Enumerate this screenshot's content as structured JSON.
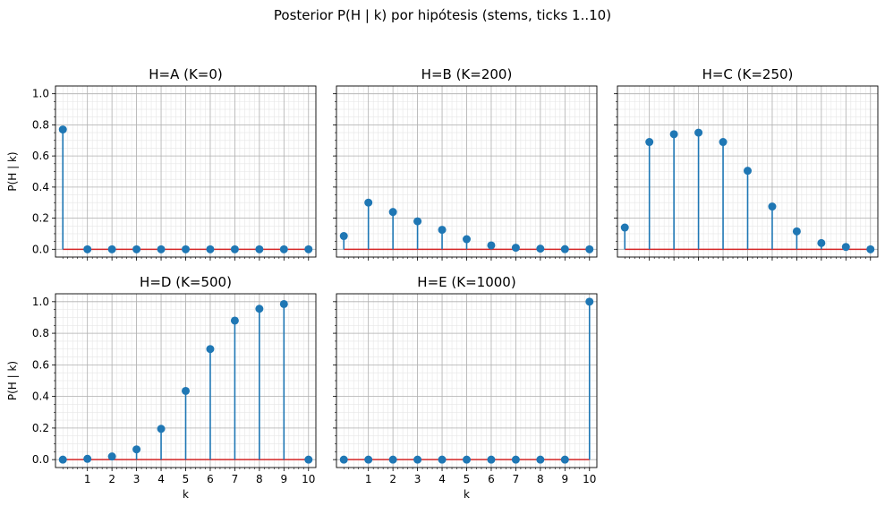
{
  "figure": {
    "suptitle": "Posterior P(H | k) por hipótesis (stems, ticks 1..10)"
  },
  "chart_data": [
    {
      "type": "stem",
      "title": "H=A (K=0)",
      "xlabel": "",
      "ylabel": "P(H | k)",
      "x": [
        0,
        1,
        2,
        3,
        4,
        5,
        6,
        7,
        8,
        9,
        10
      ],
      "values": [
        0.77,
        0,
        0,
        0,
        0,
        0,
        0,
        0,
        0,
        0,
        0
      ],
      "xlim": [
        -0.3,
        10.3
      ],
      "ylim": [
        -0.05,
        1.05
      ],
      "xticks": [
        1,
        2,
        3,
        4,
        5,
        6,
        7,
        8,
        9,
        10
      ],
      "yticks": [
        0.0,
        0.2,
        0.4,
        0.6,
        0.8,
        1.0
      ],
      "show_xtick_labels": false,
      "show_ytick_labels": true,
      "grid": true
    },
    {
      "type": "stem",
      "title": "H=B (K=200)",
      "xlabel": "",
      "ylabel": "",
      "x": [
        0,
        1,
        2,
        3,
        4,
        5,
        6,
        7,
        8,
        9,
        10
      ],
      "values": [
        0.085,
        0.3,
        0.24,
        0.18,
        0.125,
        0.065,
        0.025,
        0.01,
        0.004,
        0.001,
        0.0
      ],
      "xlim": [
        -0.3,
        10.3
      ],
      "ylim": [
        -0.05,
        1.05
      ],
      "xticks": [
        1,
        2,
        3,
        4,
        5,
        6,
        7,
        8,
        9,
        10
      ],
      "yticks": [
        0.0,
        0.2,
        0.4,
        0.6,
        0.8,
        1.0
      ],
      "show_xtick_labels": false,
      "show_ytick_labels": false,
      "grid": true
    },
    {
      "type": "stem",
      "title": "H=C (K=250)",
      "xlabel": "",
      "ylabel": "",
      "x": [
        0,
        1,
        2,
        3,
        4,
        5,
        6,
        7,
        8,
        9,
        10
      ],
      "values": [
        0.14,
        0.69,
        0.74,
        0.75,
        0.69,
        0.505,
        0.275,
        0.115,
        0.04,
        0.015,
        0.0
      ],
      "xlim": [
        -0.3,
        10.3
      ],
      "ylim": [
        -0.05,
        1.05
      ],
      "xticks": [
        1,
        2,
        3,
        4,
        5,
        6,
        7,
        8,
        9,
        10
      ],
      "yticks": [
        0.0,
        0.2,
        0.4,
        0.6,
        0.8,
        1.0
      ],
      "show_xtick_labels": false,
      "show_ytick_labels": false,
      "grid": true
    },
    {
      "type": "stem",
      "title": "H=D (K=500)",
      "xlabel": "k",
      "ylabel": "P(H | k)",
      "x": [
        0,
        1,
        2,
        3,
        4,
        5,
        6,
        7,
        8,
        9,
        10
      ],
      "values": [
        0.0,
        0.005,
        0.02,
        0.065,
        0.195,
        0.435,
        0.7,
        0.88,
        0.955,
        0.985,
        0.0
      ],
      "xlim": [
        -0.3,
        10.3
      ],
      "ylim": [
        -0.05,
        1.05
      ],
      "xticks": [
        1,
        2,
        3,
        4,
        5,
        6,
        7,
        8,
        9,
        10
      ],
      "yticks": [
        0.0,
        0.2,
        0.4,
        0.6,
        0.8,
        1.0
      ],
      "show_xtick_labels": true,
      "show_ytick_labels": true,
      "grid": true
    },
    {
      "type": "stem",
      "title": "H=E (K=1000)",
      "xlabel": "k",
      "ylabel": "",
      "x": [
        0,
        1,
        2,
        3,
        4,
        5,
        6,
        7,
        8,
        9,
        10
      ],
      "values": [
        0,
        0,
        0,
        0,
        0,
        0,
        0,
        0,
        0,
        0,
        1.0
      ],
      "xlim": [
        -0.3,
        10.3
      ],
      "ylim": [
        -0.05,
        1.05
      ],
      "xticks": [
        1,
        2,
        3,
        4,
        5,
        6,
        7,
        8,
        9,
        10
      ],
      "yticks": [
        0.0,
        0.2,
        0.4,
        0.6,
        0.8,
        1.0
      ],
      "show_xtick_labels": true,
      "show_ytick_labels": false,
      "grid": true
    }
  ],
  "colors": {
    "stem": "#1f77b4",
    "baseline": "#d62728",
    "grid_major": "#b0b0b0",
    "grid_minor": "#e6e6e6",
    "axes": "#000000"
  }
}
